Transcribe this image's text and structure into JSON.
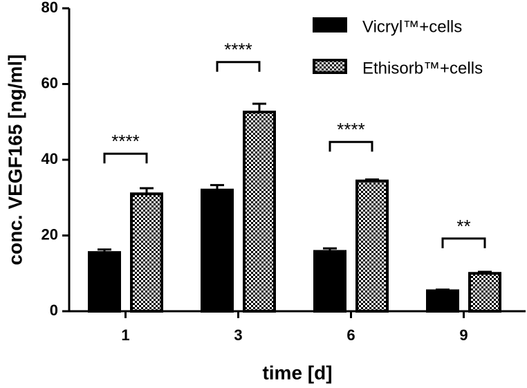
{
  "chart_data": {
    "type": "bar",
    "x_label": "time [d]",
    "y_label": "conc. VEGF165 [ng/ml]",
    "categories": [
      "1",
      "3",
      "6",
      "9"
    ],
    "series": [
      {
        "name": "Vicryl™+cells",
        "color": "#000000",
        "fill": "solid",
        "values": [
          15.5,
          32,
          15.8,
          5.4
        ],
        "errors": [
          0.8,
          1.3,
          0.8,
          0.3
        ]
      },
      {
        "name": "Ethisorb™+cells",
        "color": "#000000",
        "fill": "checkerboard",
        "values": [
          31,
          52.6,
          34.4,
          10
        ],
        "errors": [
          1.5,
          2.2,
          0.4,
          0.4
        ]
      }
    ],
    "annotations": [
      {
        "category": "1",
        "text": "****",
        "y": 41.6
      },
      {
        "category": "3",
        "text": "****",
        "y": 65.8
      },
      {
        "category": "6",
        "text": "****",
        "y": 44.7
      },
      {
        "category": "9",
        "text": "**",
        "y": 19.2
      }
    ],
    "ylim": [
      0,
      80
    ],
    "yticks": [
      0,
      20,
      40,
      60,
      80
    ],
    "legend": "top-right"
  }
}
